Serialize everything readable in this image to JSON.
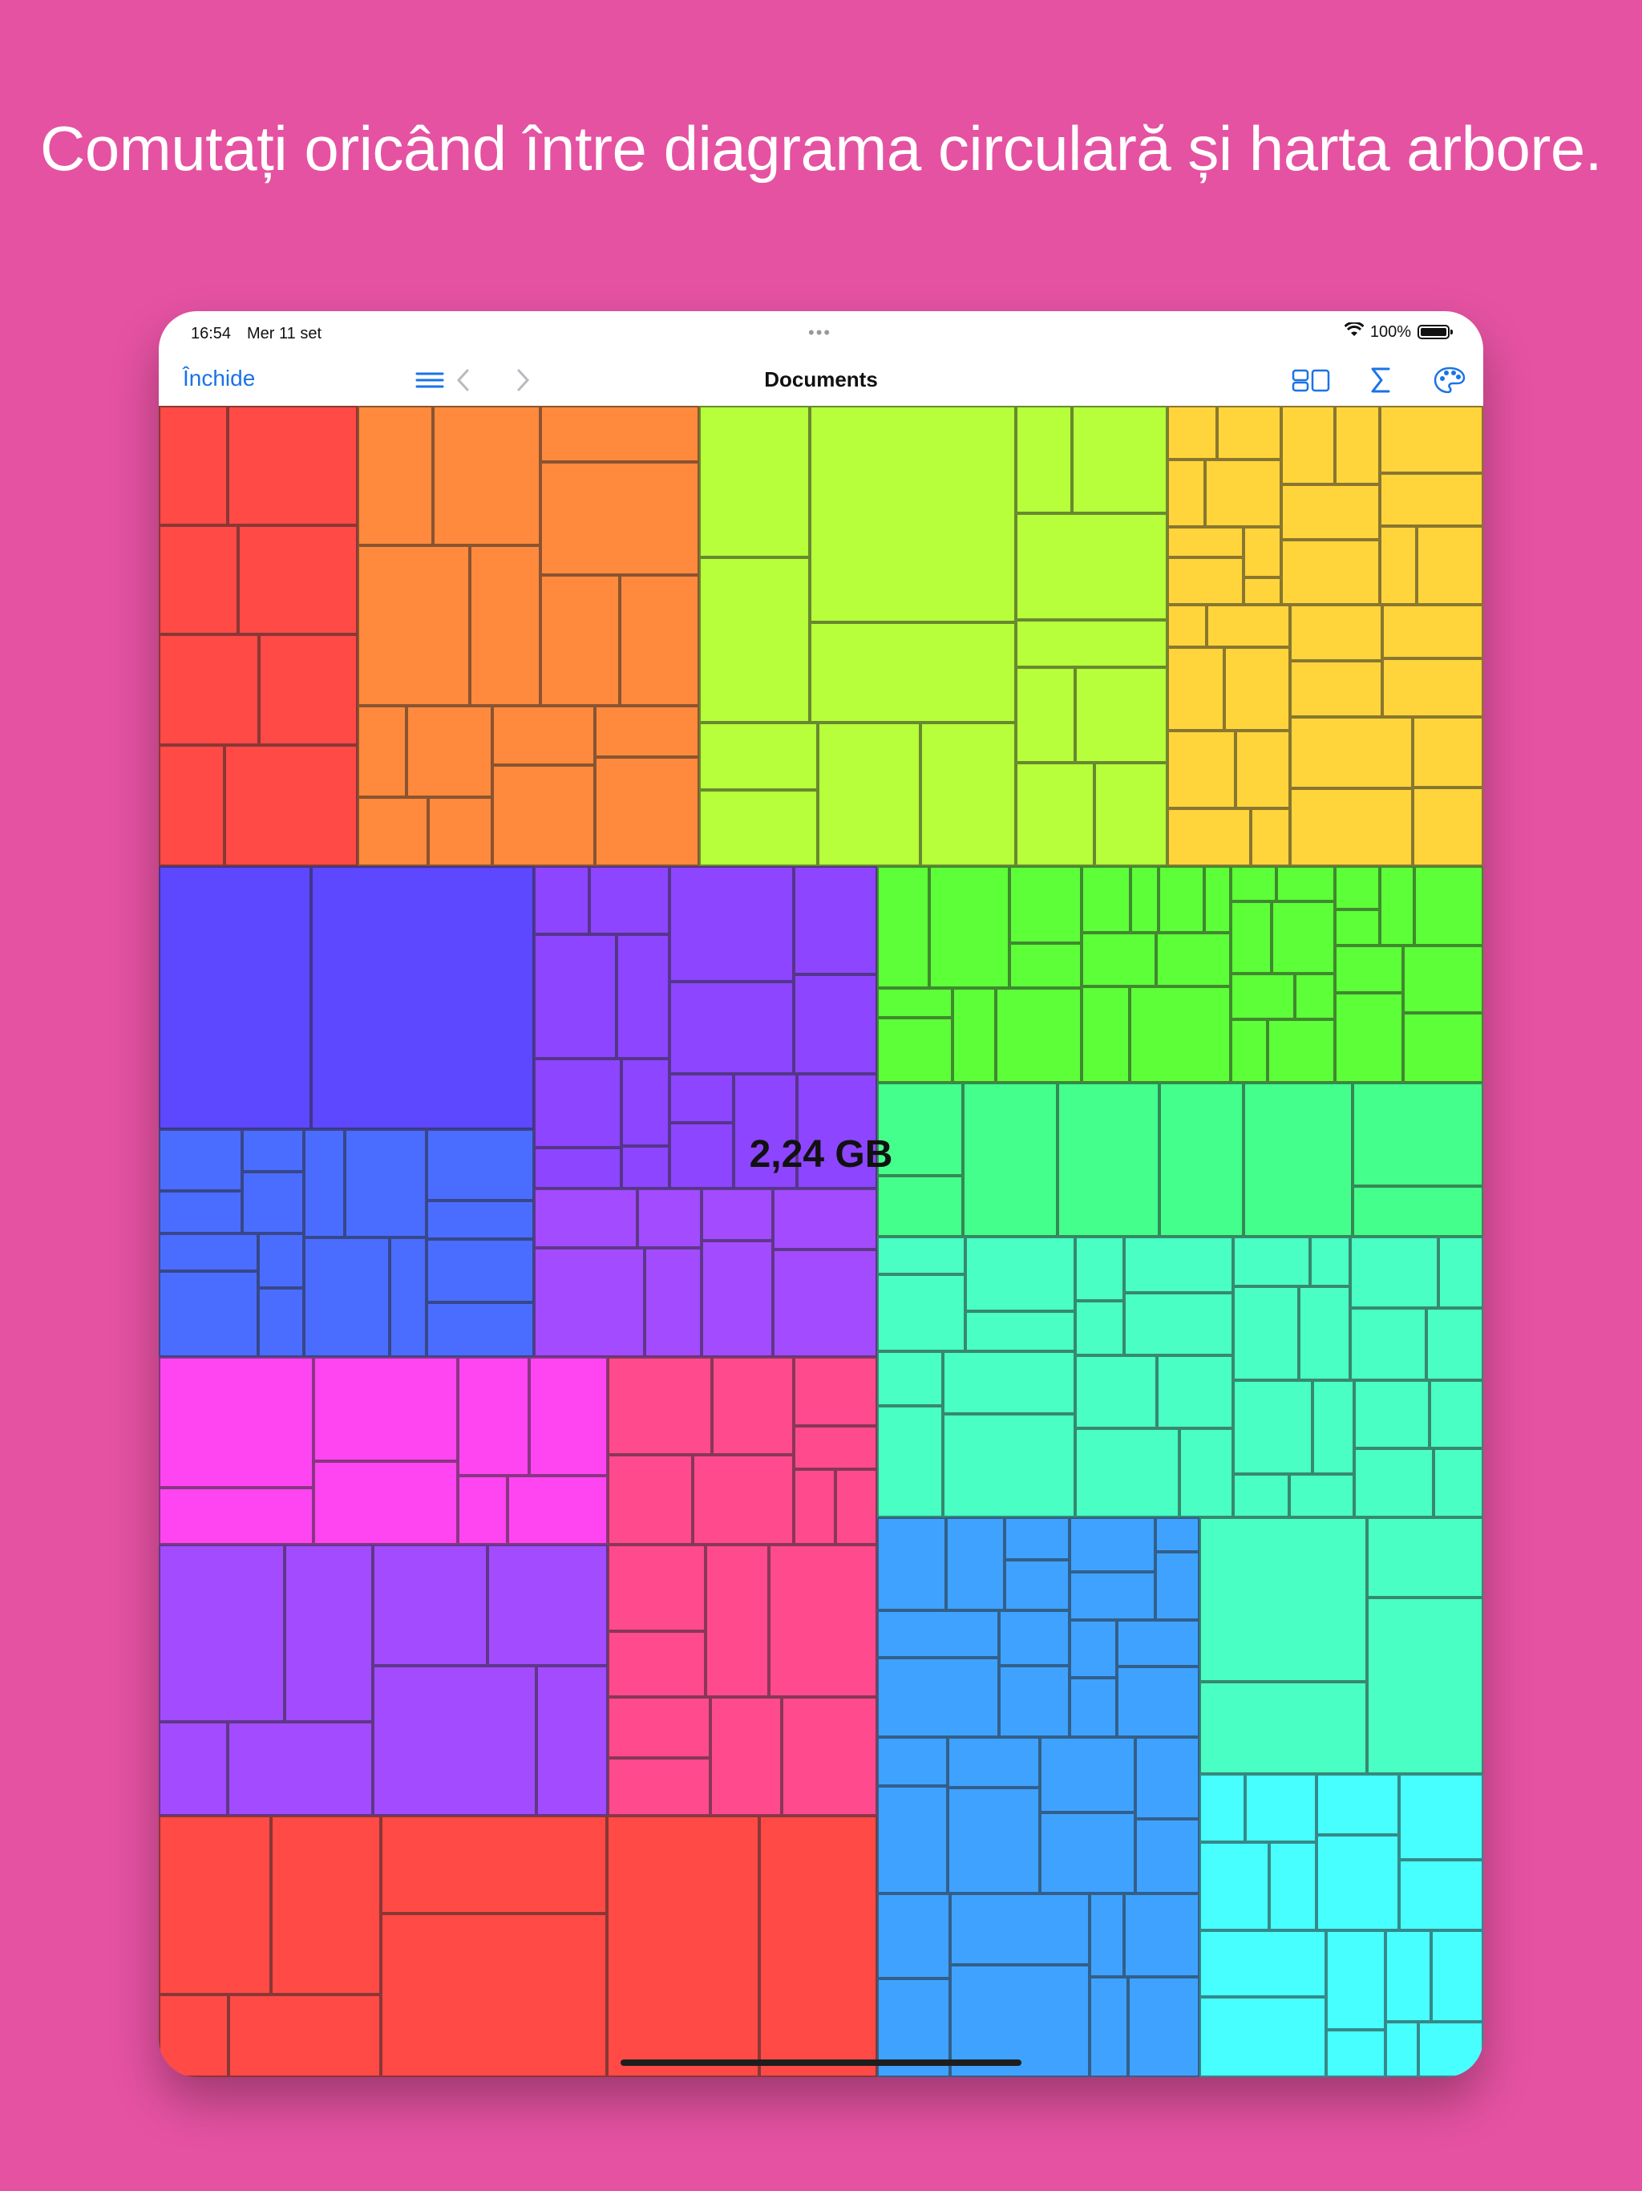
{
  "headline": "Comutați oricând între diagrama circulară și harta arbore.",
  "status": {
    "time": "16:54",
    "date": "Mer 11 set",
    "battery": "100%",
    "multitask": "•••"
  },
  "toolbar": {
    "close_label": "Închide",
    "title": "Documents",
    "icons": [
      "chevron-left-icon",
      "chevron-right-icon",
      "list-icon",
      "layout-icon",
      "sum-icon",
      "palette-icon",
      "sliders-icon",
      "more-icon"
    ]
  },
  "treemap": {
    "label": "2,24 GB",
    "colors": {
      "red": "#ff4a46",
      "orange": "#ff8a3d",
      "lime": "#b6ff3a",
      "yellow": "#ffd53b",
      "indigo": "#5d47ff",
      "violet": "#8d45ff",
      "blue": "#4a6dff",
      "purple": "#a34bff",
      "green": "#5dff39",
      "mint": "#44ff8c",
      "teal": "#49ffc4",
      "magenta": "#ff45f2",
      "pink": "#ff4a8e",
      "sky": "#3fa2ff",
      "cyan": "#48ffff",
      "gray": "#a9a9a9"
    }
  }
}
